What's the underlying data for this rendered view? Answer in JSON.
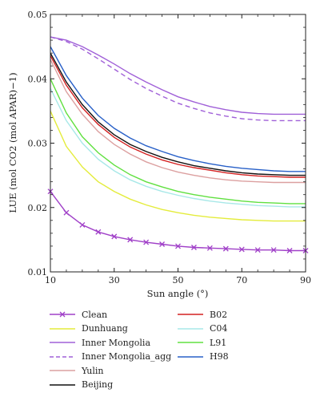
{
  "chart_data": {
    "type": "line",
    "xlabel": "Sun angle (°)",
    "ylabel": "LUE (mol CO2 (mol APAR)−1)",
    "xlim": [
      10,
      90
    ],
    "ylim": [
      0.01,
      0.05
    ],
    "xticks": [
      10,
      30,
      50,
      70,
      90
    ],
    "yticks": [
      0.01,
      0.02,
      0.03,
      0.04,
      0.05
    ],
    "xtick_labels": [
      "10",
      "30",
      "50",
      "70",
      "90"
    ],
    "ytick_labels": [
      "0.01",
      "0.02",
      "0.03",
      "0.04",
      "0.05"
    ],
    "grid": false,
    "legend_position": "below",
    "x": [
      10,
      15,
      20,
      25,
      30,
      35,
      40,
      45,
      50,
      55,
      60,
      65,
      70,
      75,
      80,
      85,
      90
    ],
    "series": [
      {
        "name": "Clean",
        "color": "#a040c8",
        "dash": false,
        "marker": "x",
        "values": [
          0.0225,
          0.0192,
          0.0173,
          0.0162,
          0.0155,
          0.015,
          0.0146,
          0.0143,
          0.014,
          0.0138,
          0.0137,
          0.0136,
          0.0135,
          0.0134,
          0.0134,
          0.0133,
          0.0133
        ]
      },
      {
        "name": "Dunhuang",
        "color": "#e4ec3c",
        "dash": false,
        "marker": "none",
        "values": [
          0.035,
          0.0295,
          0.0263,
          0.024,
          0.0225,
          0.0213,
          0.0204,
          0.0197,
          0.0192,
          0.0188,
          0.0185,
          0.0183,
          0.0181,
          0.018,
          0.0179,
          0.0179,
          0.0179
        ]
      },
      {
        "name": "Inner Mongolia",
        "color": "#a060d8",
        "dash": false,
        "marker": "none",
        "values": [
          0.0465,
          0.046,
          0.045,
          0.0437,
          0.0423,
          0.0408,
          0.0395,
          0.0383,
          0.0372,
          0.0364,
          0.0357,
          0.0352,
          0.0348,
          0.0346,
          0.0345,
          0.0345,
          0.0345
        ]
      },
      {
        "name": "Inner Mongolia_agg",
        "color": "#a060d8",
        "dash": true,
        "marker": "none",
        "values": [
          0.0465,
          0.0458,
          0.0446,
          0.0431,
          0.0415,
          0.0399,
          0.0385,
          0.0373,
          0.0362,
          0.0354,
          0.0347,
          0.0342,
          0.0338,
          0.0336,
          0.0335,
          0.0335,
          0.0335
        ]
      },
      {
        "name": "Yulin",
        "color": "#dca0a0",
        "dash": false,
        "marker": "none",
        "values": [
          0.043,
          0.038,
          0.0345,
          0.0318,
          0.0298,
          0.0283,
          0.0271,
          0.0262,
          0.0255,
          0.025,
          0.0246,
          0.0243,
          0.0241,
          0.024,
          0.0239,
          0.0239,
          0.0239
        ]
      },
      {
        "name": "Beijing",
        "color": "#111111",
        "dash": false,
        "marker": "none",
        "values": [
          0.044,
          0.0395,
          0.036,
          0.0333,
          0.0313,
          0.0298,
          0.0287,
          0.0278,
          0.0271,
          0.0265,
          0.0261,
          0.0257,
          0.0254,
          0.0252,
          0.0251,
          0.025,
          0.025
        ]
      },
      {
        "name": "B02",
        "color": "#d42020",
        "dash": false,
        "marker": "none",
        "values": [
          0.0436,
          0.039,
          0.0355,
          0.0329,
          0.0309,
          0.0294,
          0.0283,
          0.0274,
          0.0267,
          0.0262,
          0.0258,
          0.0254,
          0.0251,
          0.0249,
          0.0248,
          0.0247,
          0.0247
        ]
      },
      {
        "name": "C04",
        "color": "#a8e8e8",
        "dash": false,
        "marker": "none",
        "values": [
          0.0385,
          0.0335,
          0.03,
          0.0275,
          0.0257,
          0.0243,
          0.0233,
          0.0225,
          0.0219,
          0.0214,
          0.021,
          0.0207,
          0.0205,
          0.0203,
          0.0202,
          0.0201,
          0.0201
        ]
      },
      {
        "name": "L91",
        "color": "#60e040",
        "dash": false,
        "marker": "none",
        "values": [
          0.04,
          0.0347,
          0.031,
          0.0285,
          0.0266,
          0.0251,
          0.024,
          0.0232,
          0.0225,
          0.022,
          0.0216,
          0.0213,
          0.021,
          0.0208,
          0.0207,
          0.0206,
          0.0206
        ]
      },
      {
        "name": "H98",
        "color": "#2860c8",
        "dash": false,
        "marker": "none",
        "values": [
          0.045,
          0.0405,
          0.037,
          0.0343,
          0.0323,
          0.0308,
          0.0296,
          0.0287,
          0.0279,
          0.0273,
          0.0268,
          0.0264,
          0.0261,
          0.0259,
          0.0257,
          0.0256,
          0.0256
        ]
      }
    ],
    "legend_columns": [
      [
        "Clean",
        "Dunhuang",
        "Inner Mongolia",
        "Inner Mongolia_agg",
        "Yulin",
        "Beijing"
      ],
      [
        "B02",
        "C04",
        "L91",
        "H98"
      ]
    ]
  }
}
